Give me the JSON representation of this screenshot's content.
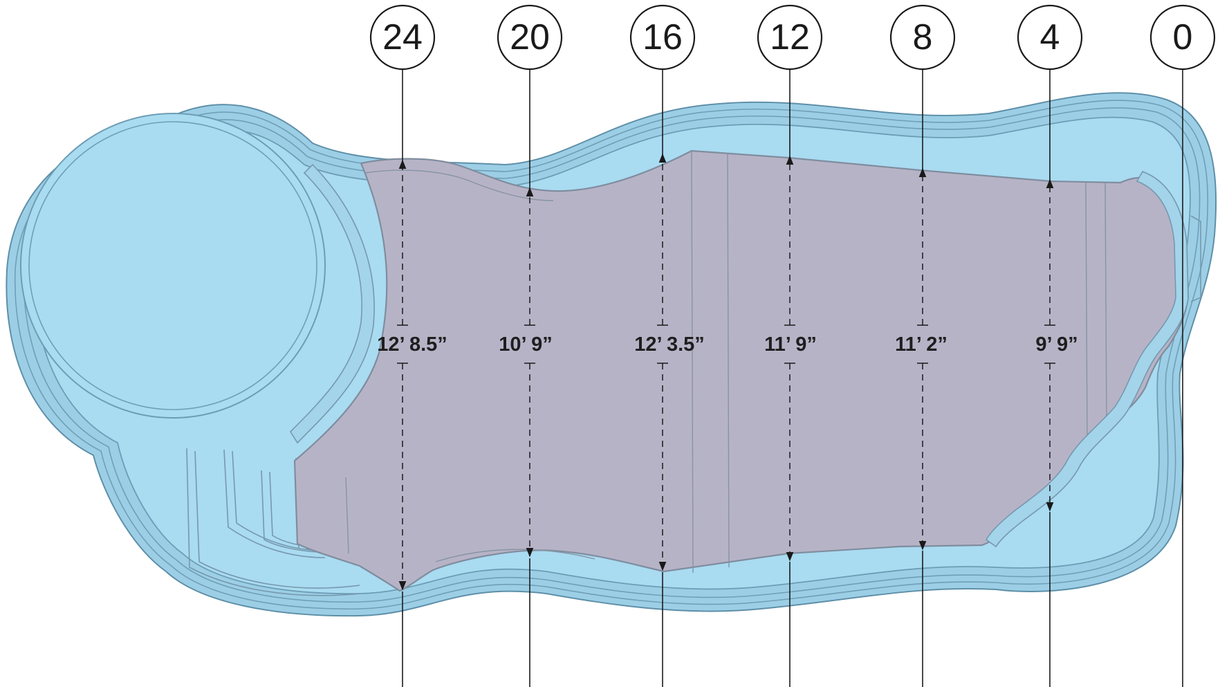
{
  "diagram": {
    "stations": [
      {
        "label": "24",
        "width": "12’ 8.5”"
      },
      {
        "label": "20",
        "width": "10’ 9”"
      },
      {
        "label": "16",
        "width": "12’ 3.5”"
      },
      {
        "label": "12",
        "width": "11’ 9”"
      },
      {
        "label": "8",
        "width": "11’ 2”"
      },
      {
        "label": "4",
        "width": "9’ 9”"
      },
      {
        "label": "0",
        "width": ""
      }
    ],
    "colors": {
      "water": "#a9dbf1",
      "pool_shell": "#9ccfe6",
      "deep_area": "#b7b3c7",
      "lines": "#1a1a1a"
    }
  }
}
